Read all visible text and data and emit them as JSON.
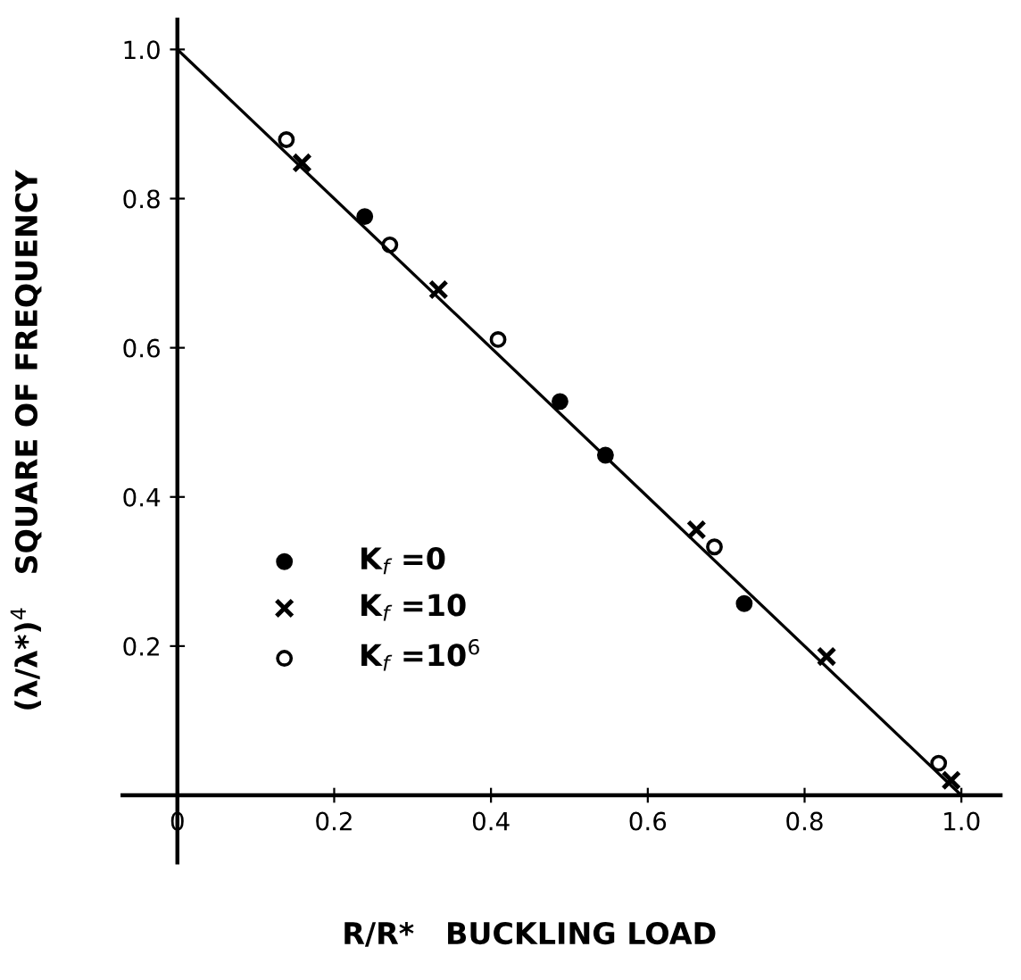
{
  "chart_data": {
    "type": "scatter",
    "xlabel": "R/R*   BUCKLING LOAD",
    "ylabel": "(λ/λ*)$^{4}$   SQUARE OF FREQUENCY",
    "xlim": [
      -0.07,
      1.05
    ],
    "ylim": [
      -0.09,
      1.04
    ],
    "xticks": [
      0,
      0.2,
      0.4,
      0.6,
      0.8,
      {
        "value": 1.0,
        "label": "1.0"
      }
    ],
    "yticks": [
      0.2,
      0.4,
      0.6,
      0.8,
      {
        "value": 1.0,
        "label": "1.0"
      }
    ],
    "grid": false,
    "legend": "left",
    "series": [
      {
        "name": "K$_{f}$ =0",
        "color": "#000000",
        "marker": "circle",
        "x": [
          0.239,
          0.488,
          0.546,
          0.723
        ],
        "values": [
          0.776,
          0.528,
          0.456,
          0.257
        ]
      },
      {
        "name": "K$_{f}$ =10",
        "color": "#000000",
        "marker": "cross",
        "x": [
          0.159,
          0.333,
          0.662,
          0.828,
          0.987
        ],
        "values": [
          0.848,
          0.678,
          0.356,
          0.186,
          0.02
        ]
      },
      {
        "name": "K$_{f}$ =10$^{6}$",
        "color": "#000000",
        "marker": "open circle",
        "x": [
          0.139,
          0.271,
          0.409,
          0.685,
          0.971
        ],
        "values": [
          0.879,
          0.738,
          0.611,
          0.333,
          0.043
        ]
      },
      {
        "type": "line",
        "color": "#000000",
        "marker": "none",
        "line_style": "solid",
        "x": [
          0,
          1
        ],
        "values": [
          1,
          0
        ]
      }
    ]
  }
}
